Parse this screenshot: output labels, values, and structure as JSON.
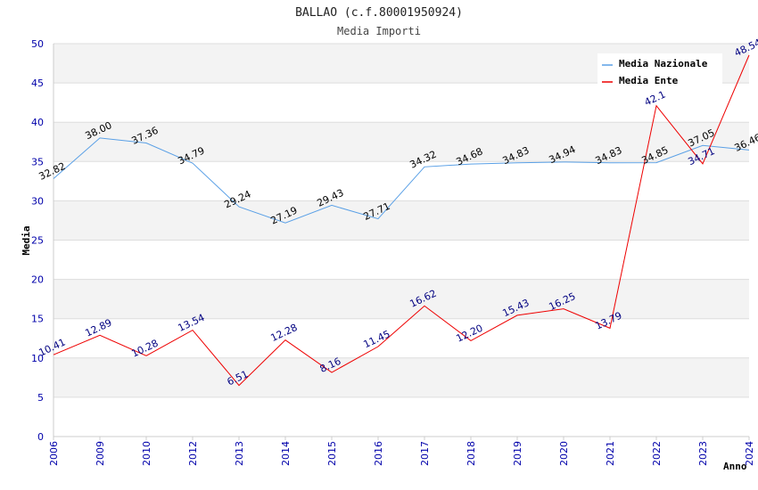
{
  "chart_data": {
    "type": "line",
    "title": "BALLAO (c.f.80001950924)",
    "subtitle": "Media Importi",
    "xlabel": "Anno",
    "ylabel": "Media",
    "ylim": [
      0,
      50
    ],
    "yticks": [
      0,
      5,
      10,
      15,
      20,
      25,
      30,
      35,
      40,
      45,
      50
    ],
    "categories": [
      "2006",
      "2009",
      "2010",
      "2012",
      "2013",
      "2014",
      "2015",
      "2016",
      "2017",
      "2018",
      "2019",
      "2020",
      "2021",
      "2022",
      "2023",
      "2024"
    ],
    "legend_position": "top-right",
    "series": [
      {
        "name": "Media Nazionale",
        "color": "#5aa0e6",
        "values": [
          32.82,
          38.0,
          37.36,
          34.79,
          29.24,
          27.19,
          29.43,
          27.71,
          34.32,
          34.68,
          34.83,
          34.94,
          34.83,
          34.85,
          37.05,
          36.46
        ],
        "labels": [
          "32.82",
          "38.00",
          "37.36",
          "34.79",
          "29.24",
          "27.19",
          "29.43",
          "27.71",
          "34.32",
          "34.68",
          "34.83",
          "34.94",
          "34.83",
          "34.85",
          "37.05",
          "36.46"
        ]
      },
      {
        "name": "Media Ente",
        "color": "#ee0000",
        "values": [
          10.41,
          12.89,
          10.28,
          13.54,
          6.51,
          12.28,
          8.16,
          11.45,
          16.62,
          12.2,
          15.43,
          16.25,
          13.79,
          42.1,
          34.71,
          48.54
        ],
        "labels": [
          "10.41",
          "12.89",
          "10.28",
          "13.54",
          "6.51",
          "12.28",
          "8.16",
          "11.45",
          "16.62",
          "12.20",
          "15.43",
          "16.25",
          "13.79",
          "42.1",
          "34.71",
          "48.54"
        ]
      }
    ]
  }
}
